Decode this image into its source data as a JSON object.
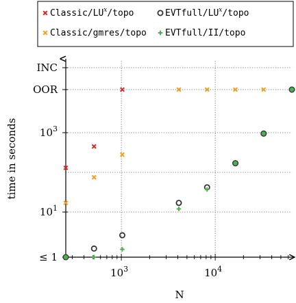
{
  "chart_data": {
    "type": "scatter",
    "xlabel": "N",
    "ylabel": "time in seconds",
    "x_scale": "log",
    "y_scale": "log",
    "xlim": [
      256,
      65536
    ],
    "x_ticks": [
      {
        "value": 1000,
        "base": "10",
        "exp": "3"
      },
      {
        "value": 10000,
        "base": "10",
        "exp": "4"
      }
    ],
    "y_ticks": [
      {
        "value": 1,
        "label": "≤ 1"
      },
      {
        "value": 10,
        "base": "10",
        "exp": "1"
      },
      {
        "value": 1000,
        "base": "10",
        "exp": "3"
      }
    ],
    "special_rows": [
      {
        "key": "OOR",
        "label": "OOR"
      },
      {
        "key": "INC",
        "label": "INC"
      }
    ],
    "grid": true,
    "legend_position": "top",
    "series": [
      {
        "name": "Classic/LU",
        "name_sup": "x",
        "name_suffix": "/topo",
        "marker": "x",
        "color": "#d62728",
        "points": [
          {
            "x": 256,
            "y": 130
          },
          {
            "x": 512,
            "y": 450
          },
          {
            "x": 1024,
            "y": "OOR"
          }
        ]
      },
      {
        "name": "EVTfull/LU",
        "name_sup": "x",
        "name_suffix": "/topo",
        "marker": "o",
        "color": "#333333",
        "points": [
          {
            "x": 256,
            "y": 1
          },
          {
            "x": 512,
            "y": 1.2
          },
          {
            "x": 1024,
            "y": 2.6
          },
          {
            "x": 4096,
            "y": 17
          },
          {
            "x": 8192,
            "y": 42
          },
          {
            "x": 16384,
            "y": 170
          },
          {
            "x": 32768,
            "y": 950
          },
          {
            "x": 65536,
            "y": "OOR"
          }
        ]
      },
      {
        "name": "Classic/gmres/topo",
        "name_sup": "",
        "name_suffix": "",
        "marker": "x",
        "color": "#f0a020",
        "points": [
          {
            "x": 256,
            "y": 17
          },
          {
            "x": 512,
            "y": 75
          },
          {
            "x": 1024,
            "y": 280
          },
          {
            "x": 4096,
            "y": "OOR"
          },
          {
            "x": 8192,
            "y": "OOR"
          },
          {
            "x": 16384,
            "y": "OOR"
          },
          {
            "x": 32768,
            "y": "OOR"
          }
        ]
      },
      {
        "name": "EVTfull/II/topo",
        "name_sup": "",
        "name_suffix": "",
        "marker": "+",
        "color": "#4caf50",
        "points": [
          {
            "x": 256,
            "y": 1
          },
          {
            "x": 512,
            "y": 1
          },
          {
            "x": 1024,
            "y": 1.15
          },
          {
            "x": 4096,
            "y": 12
          },
          {
            "x": 8192,
            "y": 37
          },
          {
            "x": 16384,
            "y": 170
          },
          {
            "x": 32768,
            "y": 950
          },
          {
            "x": 65536,
            "y": "OOR"
          }
        ]
      }
    ]
  }
}
